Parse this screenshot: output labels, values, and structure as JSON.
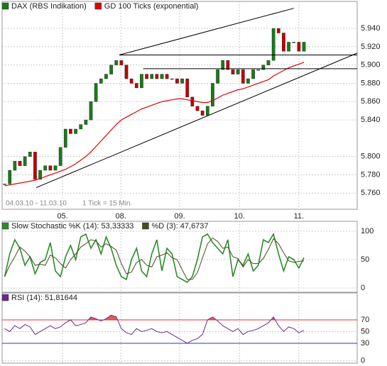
{
  "chart_data": [
    {
      "type": "candlestick",
      "series": [
        {
          "name": "DAX (RBS Indikation)",
          "color": "#1a7a1a",
          "down_color": "#c00000",
          "values": [
            5.77,
            5.785,
            5.795,
            5.79,
            5.8,
            5.805,
            5.775,
            5.785,
            5.79,
            5.785,
            5.79,
            5.81,
            5.83,
            5.825,
            5.83,
            5.835,
            5.84,
            5.86,
            5.88,
            5.885,
            5.89,
            5.9,
            5.905,
            5.9,
            5.885,
            5.88,
            5.875,
            5.89,
            5.885,
            5.89,
            5.885,
            5.89,
            5.885,
            5.885,
            5.88,
            5.885,
            5.865,
            5.855,
            5.85,
            5.845,
            5.855,
            5.88,
            5.895,
            5.905,
            5.895,
            5.89,
            5.895,
            5.88,
            5.885,
            5.895,
            5.895,
            5.9,
            5.905,
            5.94,
            5.935,
            5.915,
            5.925,
            5.925,
            5.915,
            5.925
          ]
        },
        {
          "name": "GD 100 Ticks (exponential)",
          "color": "#e00000",
          "values": [
            5.768,
            5.769,
            5.77,
            5.771,
            5.772,
            5.773,
            5.774,
            5.776,
            5.778,
            5.78,
            5.782,
            5.784,
            5.786,
            5.789,
            5.792,
            5.796,
            5.8,
            5.805,
            5.811,
            5.817,
            5.823,
            5.829,
            5.835,
            5.84,
            5.843,
            5.846,
            5.849,
            5.852,
            5.854,
            5.856,
            5.858,
            5.86,
            5.861,
            5.862,
            5.863,
            5.863,
            5.862,
            5.861,
            5.86,
            5.859,
            5.859,
            5.861,
            5.864,
            5.867,
            5.869,
            5.871,
            5.873,
            5.874,
            5.876,
            5.878,
            5.88,
            5.882,
            5.884,
            5.888,
            5.891,
            5.894,
            5.897,
            5.899,
            5.901,
            5.903
          ]
        }
      ],
      "notes": [
        "04.03.10 - 11.03.10",
        "1 Tick = 15 Min."
      ],
      "xlim": [
        0,
        70
      ],
      "xticks": [
        {
          "value": 11.9,
          "label": "05."
        },
        {
          "value": 23.4,
          "label": "08."
        },
        {
          "value": 35.0,
          "label": "09."
        },
        {
          "value": 46.8,
          "label": "10."
        },
        {
          "value": 58.5,
          "label": "11."
        }
      ],
      "ylim": [
        5.7424,
        5.9695
      ],
      "yticks": [
        {
          "value": 5.76,
          "label": "5.760"
        },
        {
          "value": 5.78,
          "label": "5.780"
        },
        {
          "value": 5.8,
          "label": "5.800"
        },
        {
          "value": 5.84,
          "label": "5.840"
        },
        {
          "value": 5.86,
          "label": "5.860"
        },
        {
          "value": 5.88,
          "label": "5.880"
        },
        {
          "value": 5.9,
          "label": "5.900"
        },
        {
          "value": 5.92,
          "label": "5.920"
        },
        {
          "value": 5.94,
          "label": "5.940"
        }
      ],
      "lines": [
        [
          23.1,
          5.911,
          57.5,
          5.962
        ],
        [
          6.7,
          5.766,
          70,
          5.913
        ],
        [
          23.1,
          5.911,
          70,
          5.911
        ],
        [
          27.8,
          5.896,
          70,
          5.896
        ]
      ],
      "grid": true
    },
    {
      "type": "line",
      "series": [
        {
          "name": "Slow Stochastic %K (14): 53,33333",
          "color": "#2a8c2a",
          "values": [
            20,
            60,
            85,
            70,
            40,
            55,
            25,
            45,
            50,
            80,
            30,
            20,
            55,
            75,
            50,
            90,
            95,
            70,
            85,
            60,
            90,
            70,
            40,
            20,
            15,
            50,
            70,
            30,
            20,
            60,
            85,
            30,
            70,
            60,
            20,
            15,
            10,
            20,
            50,
            90,
            95,
            80,
            70,
            60,
            85,
            20,
            50,
            40,
            60,
            30,
            40,
            85,
            80,
            95,
            60,
            30,
            55,
            50,
            35,
            53.33333
          ]
        },
        {
          "name": "%D (3): 47,6737",
          "color": "#4a4a20",
          "values": [
            20,
            40,
            55,
            72,
            65,
            55,
            40,
            42,
            40,
            58,
            53,
            43,
            35,
            50,
            60,
            72,
            78,
            85,
            83,
            72,
            78,
            73,
            67,
            43,
            25,
            28,
            45,
            50,
            40,
            37,
            55,
            58,
            62,
            53,
            50,
            32,
            15,
            15,
            27,
            53,
            78,
            88,
            82,
            70,
            72,
            55,
            52,
            37,
            50,
            43,
            43,
            52,
            68,
            87,
            78,
            62,
            48,
            45,
            47,
            47.6737
          ]
        }
      ],
      "xlim": [
        0,
        70
      ],
      "ylim": [
        -7.5,
        117.5
      ],
      "yticks": [
        0,
        50,
        100
      ],
      "grid": true
    },
    {
      "type": "rsi",
      "series": [
        {
          "name": "RSI (14): 51,81644",
          "color": "#6a2a8a",
          "values": [
            55,
            50,
            60,
            55,
            62,
            58,
            45,
            50,
            55,
            60,
            55,
            58,
            65,
            70,
            60,
            62,
            65,
            75,
            72,
            68,
            72,
            78,
            75,
            55,
            48,
            45,
            55,
            50,
            52,
            55,
            50,
            48,
            50,
            45,
            40,
            35,
            30,
            35,
            38,
            45,
            70,
            75,
            68,
            60,
            55,
            50,
            55,
            45,
            50,
            52,
            55,
            60,
            65,
            75,
            60,
            50,
            58,
            55,
            48,
            51.81644
          ]
        }
      ],
      "bands": [
        {
          "value": 70,
          "color": "#e03030"
        },
        {
          "value": 30,
          "color": "#3030d0"
        }
      ],
      "xlim": [
        0,
        70
      ],
      "ylim": [
        -4,
        116
      ],
      "yticks": [
        0,
        30,
        50,
        70
      ],
      "grid": true
    }
  ]
}
